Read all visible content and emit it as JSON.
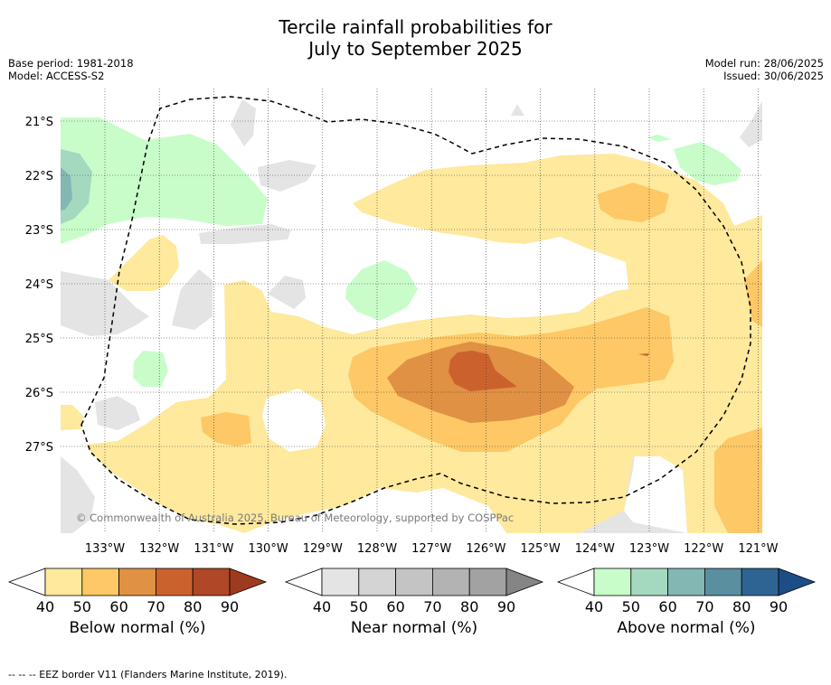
{
  "header": {
    "title_line1": "Tercile rainfall probabilities for",
    "title_line2": "July to September 2025",
    "base_period": "Base period: 1981-2018",
    "model": "Model: ACCESS-S2",
    "model_run": "Model run: 28/06/2025",
    "issued": "Issued: 30/06/2025"
  },
  "map": {
    "lat_labels": [
      "21°S",
      "22°S",
      "23°S",
      "24°S",
      "25°S",
      "26°S",
      "27°S"
    ],
    "lon_labels": [
      "133°W",
      "132°W",
      "131°W",
      "130°W",
      "129°W",
      "128°W",
      "127°W",
      "126°W",
      "125°W",
      "124°W",
      "123°W",
      "122°W",
      "121°W"
    ],
    "copyright": "© Commonwealth of Australia 2025, Bureau of Meteorology, supported by COSPPac",
    "eez_style": "dashed"
  },
  "legend": {
    "ticks": [
      "40",
      "50",
      "60",
      "70",
      "80",
      "90"
    ],
    "below": {
      "label": "Below normal (%)",
      "colors": [
        "#fee99d",
        "#fdc865",
        "#e09143",
        "#cb622d",
        "#b04726",
        "#9e3a1d"
      ]
    },
    "near": {
      "label": "Near normal (%)",
      "colors": [
        "#e4e4e4",
        "#d4d4d4",
        "#c4c4c4",
        "#b3b3b3",
        "#a2a2a2",
        "#858585"
      ]
    },
    "above": {
      "label": "Above normal (%)",
      "colors": [
        "#c8fdca",
        "#a4d9bf",
        "#83b7b3",
        "#5a8fa0",
        "#2e6494",
        "#1d4d85"
      ]
    }
  },
  "footer": {
    "note": "--  --  -- EEZ border V11 (Flanders Marine Institute, 2019)."
  }
}
